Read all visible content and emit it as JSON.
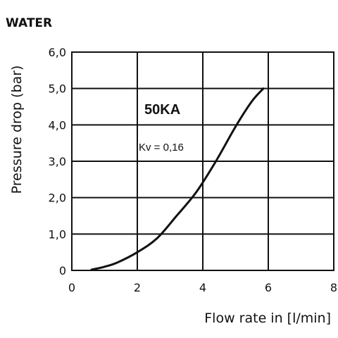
{
  "title": "WATER",
  "chart_data": {
    "type": "line",
    "title": "WATER",
    "xlabel": "Flow rate in [l/min]",
    "ylabel": "Pressure drop (bar)",
    "xlim": [
      0,
      8
    ],
    "ylim": [
      0,
      6
    ],
    "x_ticks": [
      "0",
      "2",
      "4",
      "6",
      "8"
    ],
    "y_ticks": [
      "0",
      "1,0",
      "2,0",
      "3,0",
      "4,0",
      "5,0",
      "6,0"
    ],
    "grid": true,
    "annotations": {
      "model": "50KA",
      "kv": "Kv = 0,16"
    },
    "series": [
      {
        "color": "#111111",
        "x": [
          0.6,
          1.0,
          1.4,
          2.0,
          2.6,
          3.2,
          3.8,
          4.4,
          5.0,
          5.5,
          5.85
        ],
        "y": [
          0.02,
          0.1,
          0.22,
          0.5,
          0.88,
          1.5,
          2.15,
          3.0,
          3.95,
          4.65,
          5.0
        ]
      }
    ]
  }
}
